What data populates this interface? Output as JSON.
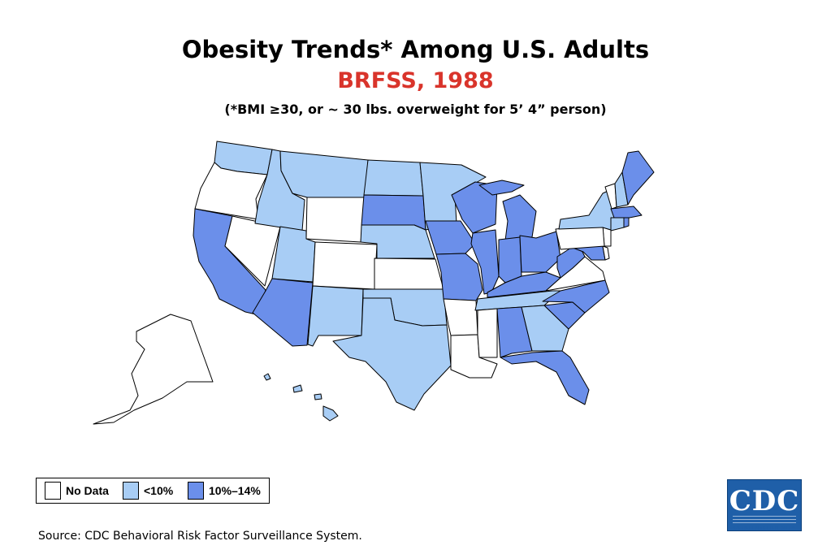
{
  "title": "Obesity Trends* Among U.S. Adults",
  "subtitle": "BRFSS, 1988",
  "note": "(*BMI ≥30, or ~ 30 lbs. overweight for 5’ 4” person)",
  "colors": {
    "no_data": "#ffffff",
    "lt10": "#a8cdf5",
    "p10_14": "#6b8fea",
    "title_red": "#d9342b",
    "border": "#000000"
  },
  "legend": [
    {
      "label": "No Data",
      "category": "no_data"
    },
    {
      "label": "<10%",
      "category": "lt10"
    },
    {
      "label": "10%–14%",
      "category": "p10_14"
    }
  ],
  "states": {
    "WA": "lt10",
    "OR": "no_data",
    "CA": "p10_14",
    "NV": "no_data",
    "ID": "lt10",
    "MT": "lt10",
    "WY": "no_data",
    "UT": "lt10",
    "AZ": "p10_14",
    "CO": "no_data",
    "NM": "lt10",
    "ND": "lt10",
    "SD": "p10_14",
    "NE": "lt10",
    "KS": "no_data",
    "OK": "lt10",
    "TX": "lt10",
    "MN": "lt10",
    "IA": "p10_14",
    "MO": "p10_14",
    "AR": "no_data",
    "LA": "no_data",
    "WI": "p10_14",
    "IL": "p10_14",
    "MI": "p10_14",
    "IN": "p10_14",
    "OH": "p10_14",
    "KY": "p10_14",
    "TN": "lt10",
    "MS": "no_data",
    "AL": "p10_14",
    "GA": "lt10",
    "FL": "p10_14",
    "SC": "p10_14",
    "NC": "p10_14",
    "VA": "no_data",
    "WV": "p10_14",
    "MD": "p10_14",
    "DE": "no_data",
    "NJ": "no_data",
    "PA": "no_data",
    "NY": "lt10",
    "CT": "lt10",
    "RI": "p10_14",
    "MA": "p10_14",
    "VT": "no_data",
    "NH": "lt10",
    "ME": "p10_14",
    "AK": "no_data",
    "HI": "lt10",
    "DC": "no_data"
  },
  "source": "Source: CDC Behavioral Risk Factor Surveillance System.",
  "logo": {
    "text": "CDC",
    "tagline": "SAFER·HEALTHIER·PEOPLE™"
  }
}
